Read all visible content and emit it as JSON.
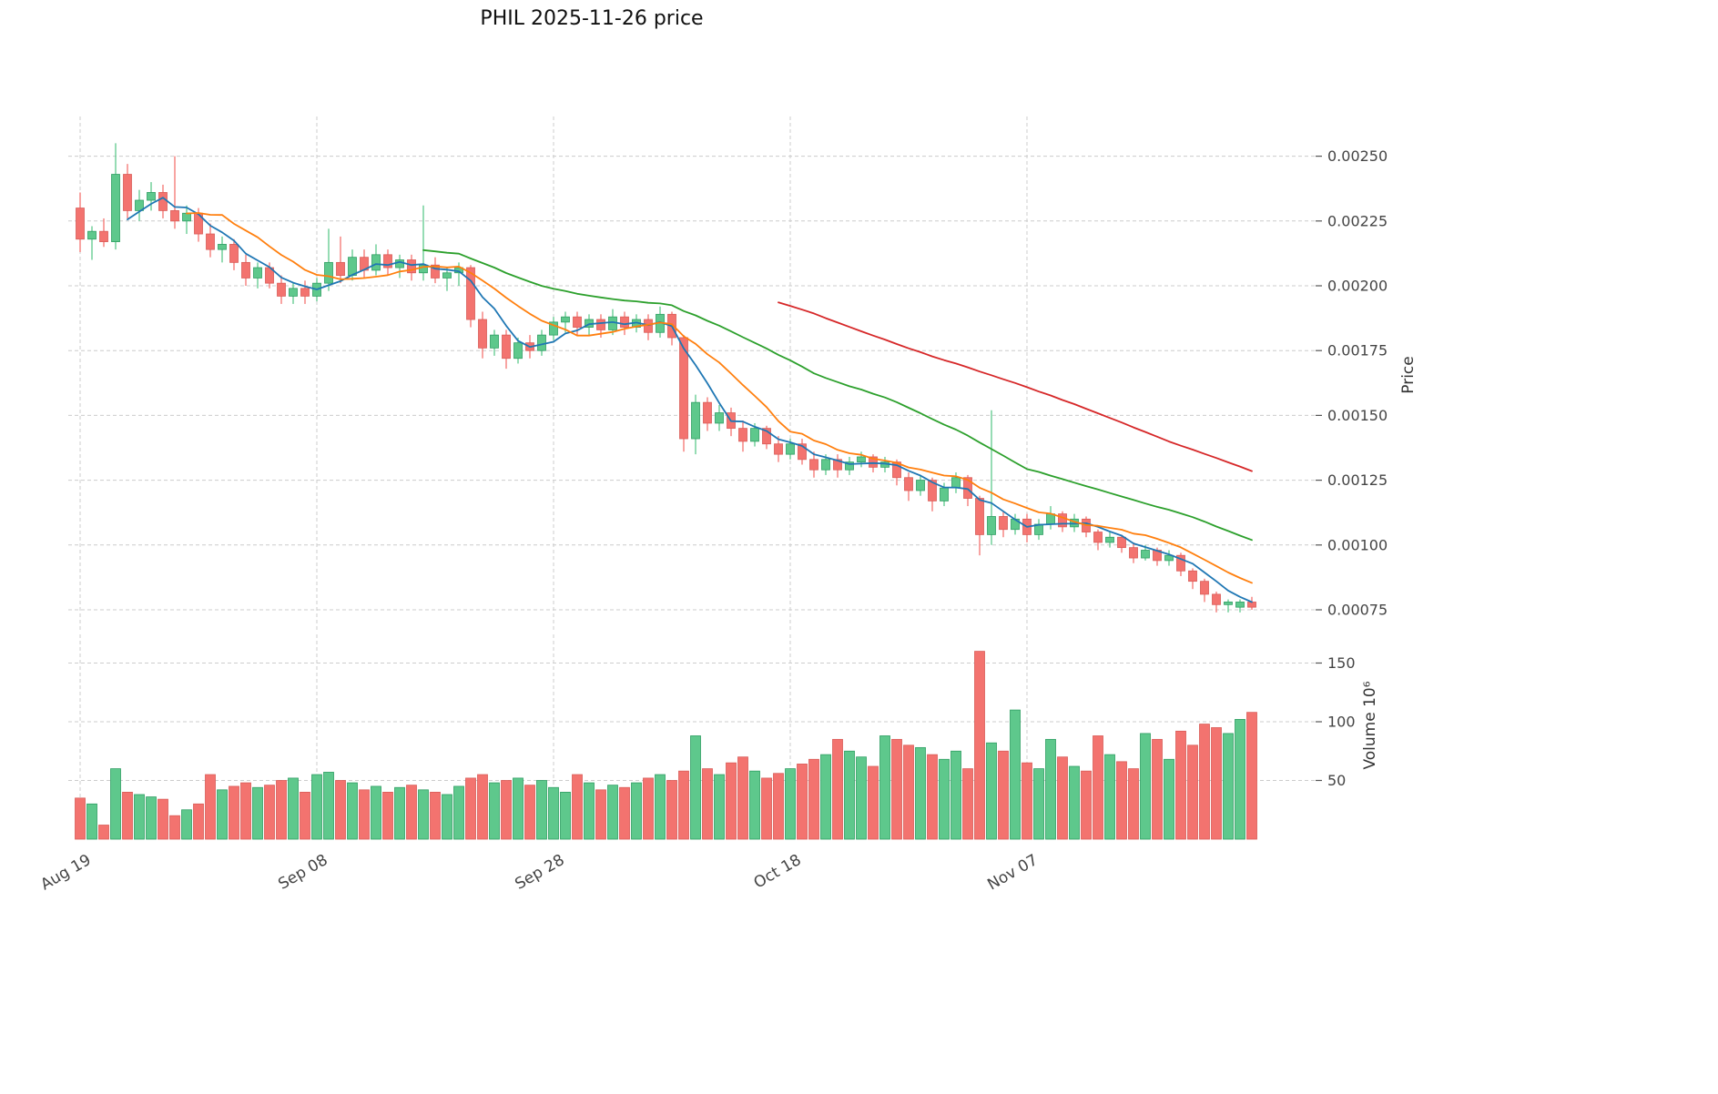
{
  "chart_data": {
    "type": "candlestick_with_volume",
    "title": "PHIL  2025-11-26  price",
    "symbol": "PHIL",
    "as_of_date": "2025-11-26",
    "start_date": "2025-08-19",
    "end_date": "2025-11-26",
    "frequency": "daily",
    "grid": true,
    "legend": false,
    "price_axis": {
      "label": "Price",
      "side": "right",
      "ticks": [
        0.00075,
        0.001,
        0.00125,
        0.0015,
        0.00175,
        0.002,
        0.00225,
        0.0025
      ]
    },
    "volume_axis": {
      "label": "Volume 10⁶",
      "side": "right",
      "unit": "10^6",
      "ticks": [
        50,
        100,
        150
      ]
    },
    "x_ticks": [
      {
        "index": 0,
        "label": "Aug 19"
      },
      {
        "index": 20,
        "label": "Sep 08"
      },
      {
        "index": 40,
        "label": "Sep 28"
      },
      {
        "index": 60,
        "label": "Oct 18"
      },
      {
        "index": 80,
        "label": "Nov 07"
      }
    ],
    "moving_averages": [
      {
        "name": "MA5",
        "window": 5,
        "color": "#1f77b4"
      },
      {
        "name": "MA10",
        "window": 10,
        "color": "#ff7f0e"
      },
      {
        "name": "MA30",
        "window": 30,
        "color": "#2ca02c"
      },
      {
        "name": "MA60",
        "window": 60,
        "color": "#d62728"
      }
    ],
    "colors": {
      "up": "#5ec88c",
      "down": "#f3736f",
      "up_edge": "#2f9e63",
      "down_edge": "#d95c58",
      "grid": "#cccccc",
      "tick_text": "#444444"
    },
    "ohlc_format": [
      "open",
      "high",
      "low",
      "close"
    ],
    "candles": [
      [
        0.0023,
        0.00236,
        0.00213,
        0.00218
      ],
      [
        0.00218,
        0.00223,
        0.0021,
        0.00221
      ],
      [
        0.00221,
        0.00226,
        0.00215,
        0.00217
      ],
      [
        0.00217,
        0.00255,
        0.00214,
        0.00243
      ],
      [
        0.00243,
        0.00247,
        0.00226,
        0.00229
      ],
      [
        0.00229,
        0.00237,
        0.00225,
        0.00233
      ],
      [
        0.00233,
        0.0024,
        0.00229,
        0.00236
      ],
      [
        0.00236,
        0.00239,
        0.00226,
        0.00229
      ],
      [
        0.00229,
        0.0025,
        0.00222,
        0.00225
      ],
      [
        0.00225,
        0.00231,
        0.0022,
        0.00228
      ],
      [
        0.00228,
        0.0023,
        0.00217,
        0.0022
      ],
      [
        0.0022,
        0.00224,
        0.00211,
        0.00214
      ],
      [
        0.00214,
        0.00219,
        0.00209,
        0.00216
      ],
      [
        0.00216,
        0.00218,
        0.00206,
        0.00209
      ],
      [
        0.00209,
        0.00212,
        0.002,
        0.00203
      ],
      [
        0.00203,
        0.00209,
        0.00199,
        0.00207
      ],
      [
        0.00207,
        0.00209,
        0.00199,
        0.00201
      ],
      [
        0.00201,
        0.00204,
        0.00193,
        0.00196
      ],
      [
        0.00196,
        0.00201,
        0.00193,
        0.00199
      ],
      [
        0.00199,
        0.00202,
        0.00193,
        0.00196
      ],
      [
        0.00196,
        0.00203,
        0.00194,
        0.00201
      ],
      [
        0.00201,
        0.00222,
        0.00198,
        0.00209
      ],
      [
        0.00209,
        0.00219,
        0.00201,
        0.00204
      ],
      [
        0.00204,
        0.00214,
        0.00202,
        0.00211
      ],
      [
        0.00211,
        0.00214,
        0.00203,
        0.00206
      ],
      [
        0.00206,
        0.00216,
        0.00204,
        0.00212
      ],
      [
        0.00212,
        0.00214,
        0.00204,
        0.00207
      ],
      [
        0.00207,
        0.00212,
        0.00203,
        0.0021
      ],
      [
        0.0021,
        0.00212,
        0.00202,
        0.00205
      ],
      [
        0.00205,
        0.00231,
        0.00202,
        0.00208
      ],
      [
        0.00208,
        0.00211,
        0.00201,
        0.00203
      ],
      [
        0.00203,
        0.00207,
        0.00198,
        0.00205
      ],
      [
        0.00205,
        0.00209,
        0.002,
        0.00207
      ],
      [
        0.00207,
        0.00208,
        0.00184,
        0.00187
      ],
      [
        0.00187,
        0.0019,
        0.00172,
        0.00176
      ],
      [
        0.00176,
        0.00183,
        0.00173,
        0.00181
      ],
      [
        0.00181,
        0.00183,
        0.00168,
        0.00172
      ],
      [
        0.00172,
        0.0018,
        0.0017,
        0.00178
      ],
      [
        0.00178,
        0.00181,
        0.00172,
        0.00175
      ],
      [
        0.00175,
        0.00183,
        0.00173,
        0.00181
      ],
      [
        0.00181,
        0.00188,
        0.00179,
        0.00186
      ],
      [
        0.00186,
        0.0019,
        0.00182,
        0.00188
      ],
      [
        0.00188,
        0.0019,
        0.00181,
        0.00184
      ],
      [
        0.00184,
        0.00189,
        0.00181,
        0.00187
      ],
      [
        0.00187,
        0.00189,
        0.0018,
        0.00183
      ],
      [
        0.00183,
        0.00191,
        0.00181,
        0.00188
      ],
      [
        0.00188,
        0.0019,
        0.00181,
        0.00184
      ],
      [
        0.00184,
        0.00189,
        0.00182,
        0.00187
      ],
      [
        0.00187,
        0.00189,
        0.00179,
        0.00182
      ],
      [
        0.00182,
        0.00192,
        0.0018,
        0.00189
      ],
      [
        0.00189,
        0.0019,
        0.00177,
        0.0018
      ],
      [
        0.0018,
        0.00181,
        0.00136,
        0.00141
      ],
      [
        0.00141,
        0.00158,
        0.00135,
        0.00155
      ],
      [
        0.00155,
        0.00157,
        0.00144,
        0.00147
      ],
      [
        0.00147,
        0.00154,
        0.00144,
        0.00151
      ],
      [
        0.00151,
        0.00153,
        0.00142,
        0.00145
      ],
      [
        0.00145,
        0.00148,
        0.00136,
        0.0014
      ],
      [
        0.0014,
        0.00147,
        0.00138,
        0.00145
      ],
      [
        0.00145,
        0.00146,
        0.00137,
        0.00139
      ],
      [
        0.00139,
        0.00142,
        0.00132,
        0.00135
      ],
      [
        0.00135,
        0.00141,
        0.00133,
        0.00139
      ],
      [
        0.00139,
        0.00141,
        0.00131,
        0.00133
      ],
      [
        0.00133,
        0.00136,
        0.00126,
        0.00129
      ],
      [
        0.00129,
        0.00135,
        0.00127,
        0.00133
      ],
      [
        0.00133,
        0.00135,
        0.00126,
        0.00129
      ],
      [
        0.00129,
        0.00134,
        0.00127,
        0.00132
      ],
      [
        0.00132,
        0.00136,
        0.0013,
        0.00134
      ],
      [
        0.00134,
        0.00135,
        0.00128,
        0.0013
      ],
      [
        0.0013,
        0.00134,
        0.00128,
        0.00132
      ],
      [
        0.00132,
        0.00133,
        0.00123,
        0.00126
      ],
      [
        0.00126,
        0.00128,
        0.00117,
        0.00121
      ],
      [
        0.00121,
        0.00127,
        0.00119,
        0.00125
      ],
      [
        0.00125,
        0.00126,
        0.00113,
        0.00117
      ],
      [
        0.00117,
        0.00124,
        0.00115,
        0.00122
      ],
      [
        0.00122,
        0.00128,
        0.0012,
        0.00126
      ],
      [
        0.00126,
        0.00127,
        0.00115,
        0.00118
      ],
      [
        0.00118,
        0.00119,
        0.00096,
        0.00104
      ],
      [
        0.00104,
        0.00152,
        0.001,
        0.00111
      ],
      [
        0.00111,
        0.00113,
        0.00103,
        0.00106
      ],
      [
        0.00106,
        0.00112,
        0.00104,
        0.0011
      ],
      [
        0.0011,
        0.00112,
        0.00101,
        0.00104
      ],
      [
        0.00104,
        0.0011,
        0.00102,
        0.00108
      ],
      [
        0.00108,
        0.00115,
        0.00106,
        0.00112
      ],
      [
        0.00112,
        0.00113,
        0.00105,
        0.00107
      ],
      [
        0.00107,
        0.00112,
        0.00105,
        0.0011
      ],
      [
        0.0011,
        0.00111,
        0.00103,
        0.00105
      ],
      [
        0.00105,
        0.00106,
        0.00098,
        0.00101
      ],
      [
        0.00101,
        0.00105,
        0.00099,
        0.00103
      ],
      [
        0.00103,
        0.00104,
        0.00097,
        0.00099
      ],
      [
        0.00099,
        0.00101,
        0.00093,
        0.00095
      ],
      [
        0.00095,
        0.001,
        0.00094,
        0.00098
      ],
      [
        0.00098,
        0.00099,
        0.00092,
        0.00094
      ],
      [
        0.00094,
        0.00098,
        0.00092,
        0.00096
      ],
      [
        0.00096,
        0.00097,
        0.00088,
        0.0009
      ],
      [
        0.0009,
        0.00091,
        0.00083,
        0.00086
      ],
      [
        0.00086,
        0.00087,
        0.00078,
        0.00081
      ],
      [
        0.00081,
        0.00082,
        0.00074,
        0.00077
      ],
      [
        0.00077,
        0.00079,
        0.00074,
        0.00078
      ],
      [
        0.00076,
        0.00079,
        0.00074,
        0.00078
      ],
      [
        0.00078,
        0.0008,
        0.00075,
        0.00076
      ]
    ],
    "volumes": [
      35,
      30,
      12,
      60,
      40,
      38,
      36,
      34,
      20,
      25,
      30,
      55,
      42,
      45,
      48,
      44,
      46,
      50,
      52,
      40,
      55,
      57,
      50,
      48,
      42,
      45,
      40,
      44,
      46,
      42,
      40,
      38,
      45,
      52,
      55,
      48,
      50,
      52,
      46,
      50,
      44,
      40,
      55,
      48,
      42,
      46,
      44,
      48,
      52,
      55,
      50,
      58,
      88,
      60,
      55,
      65,
      70,
      58,
      52,
      56,
      60,
      64,
      68,
      72,
      85,
      75,
      70,
      62,
      88,
      85,
      80,
      78,
      72,
      68,
      75,
      60,
      160,
      82,
      75,
      110,
      65,
      60,
      85,
      70,
      62,
      58,
      88,
      72,
      66,
      60,
      90,
      85,
      68,
      92,
      80,
      98,
      95,
      90,
      102,
      108
    ]
  }
}
